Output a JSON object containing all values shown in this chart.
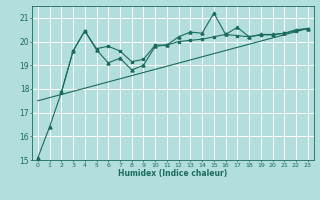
{
  "xlabel": "Humidex (Indice chaleur)",
  "bg_color": "#b2dede",
  "grid_color": "#ffffff",
  "line_color": "#1a6b5a",
  "xlim": [
    -0.5,
    23.5
  ],
  "ylim": [
    15,
    21.5
  ],
  "xticks": [
    0,
    1,
    2,
    3,
    4,
    5,
    6,
    7,
    8,
    9,
    10,
    11,
    12,
    13,
    14,
    15,
    16,
    17,
    18,
    19,
    20,
    21,
    22,
    23
  ],
  "yticks": [
    15,
    16,
    17,
    18,
    19,
    20,
    21
  ],
  "series1_x": [
    0,
    1,
    2,
    3,
    4,
    5,
    6,
    7,
    8,
    9,
    10,
    11,
    12,
    13,
    14,
    15,
    16,
    17,
    18,
    19,
    20,
    21,
    22,
    23
  ],
  "series1_y": [
    15.1,
    16.4,
    17.85,
    19.6,
    20.45,
    19.65,
    19.1,
    19.3,
    18.8,
    19.0,
    19.8,
    19.85,
    20.2,
    20.4,
    20.35,
    21.2,
    20.3,
    20.6,
    20.2,
    20.3,
    20.3,
    20.35,
    20.5,
    20.55
  ],
  "series2_x": [
    2,
    3,
    4,
    5,
    6,
    7,
    8,
    9,
    10,
    11,
    12,
    13,
    14,
    15,
    16,
    17,
    18,
    19,
    20,
    21,
    22,
    23
  ],
  "series2_y": [
    17.85,
    19.6,
    20.45,
    19.7,
    19.8,
    19.6,
    19.15,
    19.25,
    19.85,
    19.85,
    20.0,
    20.05,
    20.1,
    20.2,
    20.3,
    20.25,
    20.2,
    20.28,
    20.28,
    20.35,
    20.45,
    20.55
  ],
  "series3_x": [
    0,
    23
  ],
  "series3_y": [
    17.5,
    20.55
  ]
}
